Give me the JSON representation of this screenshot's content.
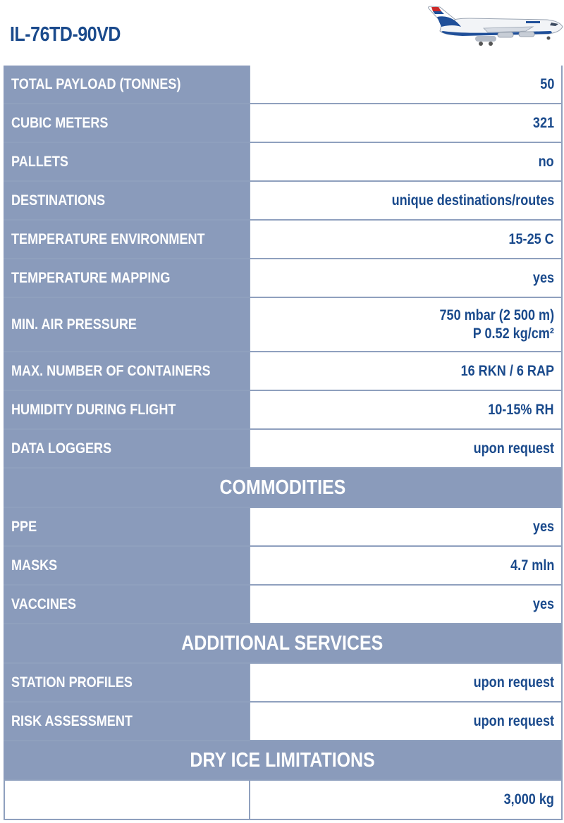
{
  "title": "IL-76TD-90VD",
  "specs": [
    {
      "label": "TOTAL PAYLOAD (TONNES)",
      "value": "50"
    },
    {
      "label": "CUBIC METERS",
      "value": "321"
    },
    {
      "label": "PALLETS",
      "value": "no"
    },
    {
      "label": "DESTINATIONS",
      "value": "unique destinations/routes"
    },
    {
      "label": "TEMPERATURE ENVIRONMENT",
      "value": "15-25 C"
    },
    {
      "label": "TEMPERATURE MAPPING",
      "value": "yes"
    },
    {
      "label": "MIN. AIR PRESSURE",
      "value": "750 mbar (2 500 m)",
      "value2": "P 0.52 kg/cm²"
    },
    {
      "label": "MAX. NUMBER OF CONTAINERS",
      "value": "16 RKN / 6 RAP"
    },
    {
      "label": "HUMIDITY DURING FLIGHT",
      "value": "10-15% RH"
    },
    {
      "label": "DATA LOGGERS",
      "value": "upon request"
    }
  ],
  "commodities": {
    "heading": "COMMODITIES",
    "rows": [
      {
        "label": "PPE",
        "value": "yes"
      },
      {
        "label": "MASKS",
        "value": "4.7 mln"
      },
      {
        "label": "VACCINES",
        "value": "yes"
      }
    ]
  },
  "additional_services": {
    "heading": "ADDITIONAL SERVICES",
    "rows": [
      {
        "label": "STATION PROFILES",
        "value": "upon request"
      },
      {
        "label": "RISK ASSESSMENT",
        "value": "upon request"
      }
    ]
  },
  "dry_ice": {
    "heading": "DRY ICE LIMITATIONS",
    "value": "3,000 kg"
  },
  "colors": {
    "label_bg": "#8a9bbb",
    "accent_text": "#1a4a8c",
    "border": "#8fa0be"
  }
}
